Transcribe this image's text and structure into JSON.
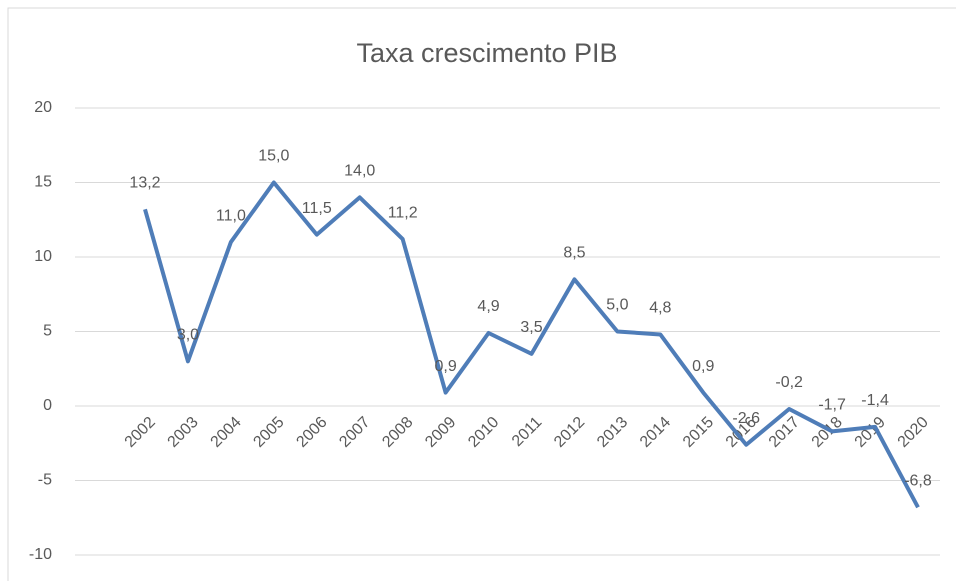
{
  "chart_data": {
    "type": "line",
    "title": "Taxa crescimento PIB",
    "categories": [
      "2002",
      "2003",
      "2004",
      "2005",
      "2006",
      "2007",
      "2008",
      "2009",
      "2010",
      "2011",
      "2012",
      "2013",
      "2014",
      "2015",
      "2016",
      "2017",
      "2018",
      "2019",
      "2020"
    ],
    "series": [
      {
        "name": "Taxa crescimento PIB",
        "color": "#4f7db8",
        "values": [
          13.2,
          3.0,
          11.0,
          15.0,
          11.5,
          14.0,
          11.2,
          0.9,
          4.9,
          3.5,
          8.5,
          5.0,
          4.8,
          0.9,
          -2.6,
          -0.2,
          -1.7,
          -1.4,
          -6.8
        ],
        "value_labels": [
          "13,2",
          "3,0",
          "11,0",
          "15,0",
          "11,5",
          "14,0",
          "11,2",
          "0,9",
          "4,9",
          "3,5",
          "8,5",
          "5,0",
          "4,8",
          "0,9",
          "-2,6",
          "-0,2",
          "-1,7",
          "-1,4",
          "-6,8"
        ]
      }
    ],
    "ylim": [
      -10,
      20
    ],
    "yticks": [
      -10,
      -5,
      0,
      5,
      10,
      15,
      20
    ],
    "grid": true
  }
}
